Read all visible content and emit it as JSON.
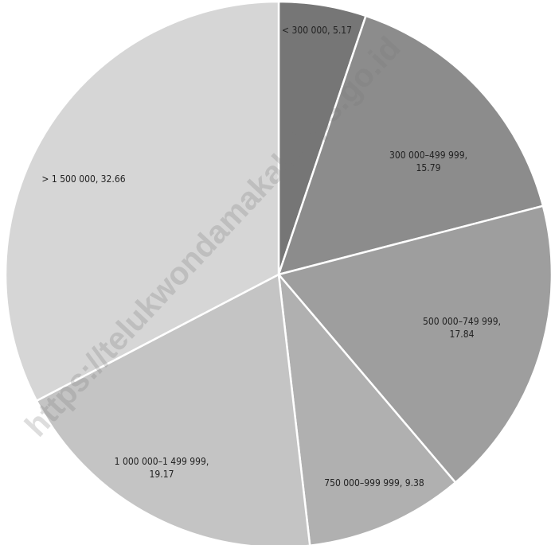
{
  "chart_data": {
    "type": "pie",
    "values": [
      5.17,
      15.79,
      17.84,
      9.38,
      19.17,
      32.66
    ],
    "value_labels": [
      "< 300 000, 5.17",
      "300 000–499 999,\n15.79",
      "500 000–749 999,\n17.84",
      "750 000–999 999, 9.38",
      "1 000 000–1 499 999,\n19.17",
      "> 1 500 000, 32.66"
    ],
    "colors": [
      "#767676",
      "#8c8c8c",
      "#9e9e9e",
      "#b0b0b0",
      "#c4c4c4",
      "#d6d6d6"
    ],
    "annotation": "https://telukwondamakab.bps.go.id"
  }
}
